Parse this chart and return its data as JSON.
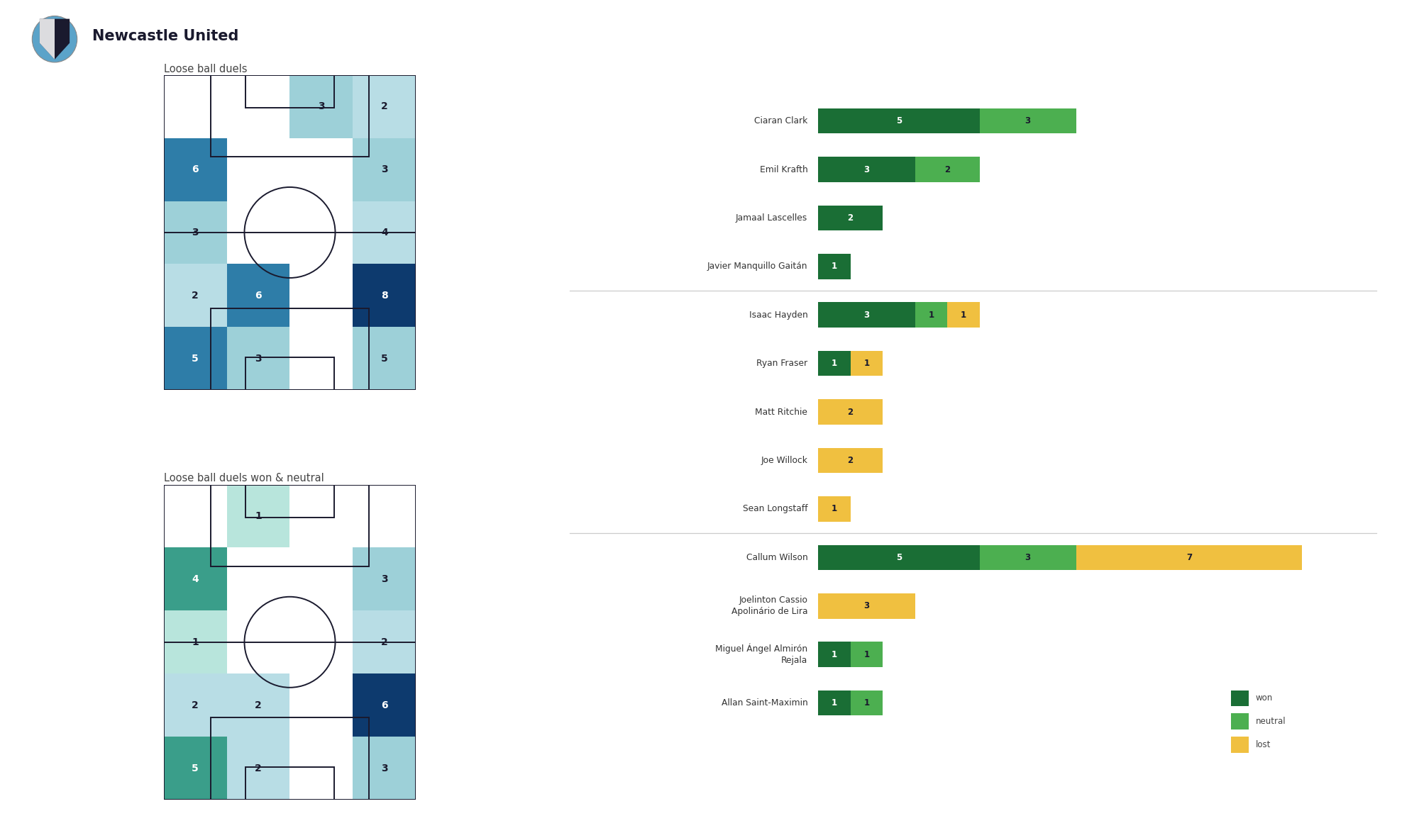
{
  "title": "Newcastle United",
  "subtitle1": "Loose ball duels",
  "subtitle2": "Loose ball duels won & neutral",
  "heatmap1_vals": [
    [
      0,
      0,
      3,
      2
    ],
    [
      6,
      0,
      0,
      3
    ],
    [
      3,
      0,
      0,
      4
    ],
    [
      2,
      6,
      0,
      8
    ],
    [
      5,
      3,
      0,
      5
    ]
  ],
  "heatmap1_colors": [
    [
      "#ffffff",
      "#ffffff",
      "#9dd0d8",
      "#b8dde5"
    ],
    [
      "#2e7da8",
      "#ffffff",
      "#ffffff",
      "#9dd0d8"
    ],
    [
      "#9dd0d8",
      "#ffffff",
      "#ffffff",
      "#b8dde5"
    ],
    [
      "#b8dde5",
      "#2e7da8",
      "#ffffff",
      "#0d3a6e"
    ],
    [
      "#2e7da8",
      "#9dd0d8",
      "#ffffff",
      "#9dd0d8"
    ]
  ],
  "heatmap2_vals": [
    [
      0,
      1,
      0,
      0
    ],
    [
      4,
      0,
      0,
      3
    ],
    [
      1,
      0,
      0,
      2
    ],
    [
      2,
      2,
      0,
      6
    ],
    [
      5,
      2,
      0,
      3
    ]
  ],
  "heatmap2_colors": [
    [
      "#ffffff",
      "#b8e5dc",
      "#ffffff",
      "#ffffff"
    ],
    [
      "#3a9e8a",
      "#ffffff",
      "#ffffff",
      "#9dd0d8"
    ],
    [
      "#b8e5dc",
      "#ffffff",
      "#ffffff",
      "#b8dde5"
    ],
    [
      "#b8dde5",
      "#b8dde5",
      "#ffffff",
      "#0d3a6e"
    ],
    [
      "#3a9e8a",
      "#b8dde5",
      "#ffffff",
      "#9dd0d8"
    ]
  ],
  "players": [
    {
      "name": "Ciaran Clark",
      "won": 5,
      "neutral": 3,
      "lost": 0
    },
    {
      "name": "Emil Krafth",
      "won": 3,
      "neutral": 2,
      "lost": 0
    },
    {
      "name": "Jamaal Lascelles",
      "won": 2,
      "neutral": 0,
      "lost": 0
    },
    {
      "name": "Javier Manquillo Gaitán",
      "won": 1,
      "neutral": 0,
      "lost": 0
    },
    {
      "name": "Isaac Hayden",
      "won": 3,
      "neutral": 1,
      "lost": 1
    },
    {
      "name": "Ryan Fraser",
      "won": 1,
      "neutral": 0,
      "lost": 1
    },
    {
      "name": "Matt Ritchie",
      "won": 0,
      "neutral": 0,
      "lost": 2
    },
    {
      "name": "Joe Willock",
      "won": 0,
      "neutral": 0,
      "lost": 2
    },
    {
      "name": "Sean Longstaff",
      "won": 0,
      "neutral": 0,
      "lost": 1
    },
    {
      "name": "Callum Wilson",
      "won": 5,
      "neutral": 3,
      "lost": 7
    },
    {
      "name": "Joelinton Cassio\nApolinário de Lira",
      "won": 0,
      "neutral": 0,
      "lost": 3
    },
    {
      "name": "Miguel Ángel Almirón\nRejala",
      "won": 1,
      "neutral": 1,
      "lost": 0
    },
    {
      "name": "Allan Saint-Maximin",
      "won": 1,
      "neutral": 1,
      "lost": 0
    }
  ],
  "separators_after": [
    3,
    8
  ],
  "color_won": "#1a6e35",
  "color_neutral": "#4caf50",
  "color_lost": "#f0c040",
  "color_sep": "#cccccc",
  "pitch_line": "#1a1a2e",
  "bar_max_val": 15
}
